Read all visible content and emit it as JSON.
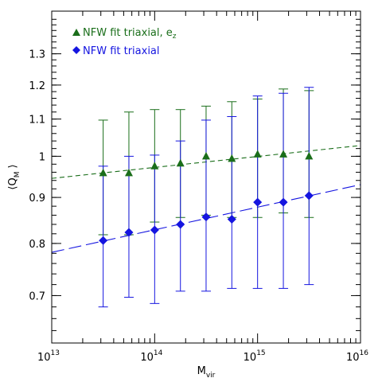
{
  "chart_data": {
    "type": "scatter",
    "xlabel": "M",
    "xlabel_sub": "vir",
    "ylabel": "⟨Q",
    "ylabel_sub": "M",
    "ylabel_close": "⟩",
    "x_scale": "log",
    "y_scale": "log",
    "xlim": [
      10000000000000.0,
      1e+16
    ],
    "ylim": [
      0.62,
      1.45
    ],
    "x_ticks": [
      {
        "value": 10000000000000.0,
        "base": "10",
        "exp": "13"
      },
      {
        "value": 100000000000000.0,
        "base": "10",
        "exp": "14"
      },
      {
        "value": 1000000000000000.0,
        "base": "10",
        "exp": "15"
      },
      {
        "value": 1e+16,
        "base": "10",
        "exp": "16"
      }
    ],
    "y_ticks": [
      {
        "value": 0.7,
        "label": "0.7"
      },
      {
        "value": 0.8,
        "label": "0.8"
      },
      {
        "value": 0.9,
        "label": "0.9"
      },
      {
        "value": 1.0,
        "label": "1"
      },
      {
        "value": 1.1,
        "label": "1.1"
      },
      {
        "value": 1.2,
        "label": "1.2"
      },
      {
        "value": 1.3,
        "label": "1.3"
      }
    ],
    "series": [
      {
        "name": "NFW fit triaxial, e",
        "name_sub": "z",
        "color": "#1a6e1a",
        "marker": "triangle",
        "x": [
          31600000000000.0,
          56200000000000.0,
          100000000000000.0,
          178000000000000.0,
          316000000000000.0,
          562000000000000.0,
          1000000000000000.0,
          1780000000000000.0,
          3160000000000000.0
        ],
        "y": [
          0.958,
          0.958,
          0.975,
          0.982,
          1.0,
          0.994,
          1.005,
          1.005,
          1.0
        ],
        "err_high": [
          1.097,
          1.12,
          1.127,
          1.127,
          1.137,
          1.15,
          1.158,
          1.188,
          1.183
        ],
        "err_low": [
          0.818,
          0.818,
          0.845,
          0.855,
          0.86,
          0.855,
          0.855,
          0.865,
          0.855
        ],
        "fit": {
          "x": [
            10000000000000.0,
            1e+16
          ],
          "y": [
            0.945,
            1.028
          ],
          "style": "short-dash"
        }
      },
      {
        "name": "NFW fit triaxial",
        "color": "#1515e0",
        "marker": "diamond",
        "x": [
          31600000000000.0,
          56200000000000.0,
          100000000000000.0,
          178000000000000.0,
          316000000000000.0,
          562000000000000.0,
          1000000000000000.0,
          1780000000000000.0,
          3160000000000000.0
        ],
        "y": [
          0.806,
          0.823,
          0.828,
          0.84,
          0.856,
          0.851,
          0.889,
          0.889,
          0.904
        ],
        "err_high": [
          0.975,
          1.0,
          1.003,
          1.04,
          1.097,
          1.107,
          1.167,
          1.175,
          1.193
        ],
        "err_low": [
          0.68,
          0.697,
          0.686,
          0.708,
          0.708,
          0.713,
          0.713,
          0.713,
          0.72
        ],
        "fit": {
          "x": [
            10000000000000.0,
            1e+16
          ],
          "y": [
            0.782,
            0.93
          ],
          "style": "long-dash"
        }
      }
    ],
    "legend_placement": "top-left",
    "grid": false
  }
}
